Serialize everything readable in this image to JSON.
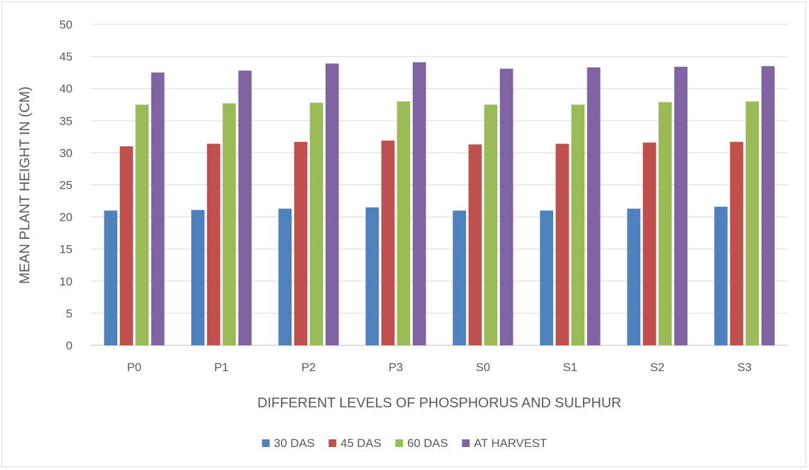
{
  "chart_data": {
    "type": "bar",
    "title": "",
    "xlabel": "DIFFERENT LEVELS OF PHOSPHORUS AND SULPHUR",
    "ylabel": "MEAN PLANT HEIGHT IN (CM)",
    "ylim": [
      0,
      50
    ],
    "yticks": [
      0,
      5,
      10,
      15,
      20,
      25,
      30,
      35,
      40,
      45,
      50
    ],
    "grid": true,
    "legend_position": "bottom",
    "categories": [
      "P0",
      "P1",
      "P2",
      "P3",
      "S0",
      "S1",
      "S2",
      "S3"
    ],
    "series": [
      {
        "name": "30 DAS",
        "color": "#4f81bd",
        "values": [
          21.0,
          21.1,
          21.3,
          21.5,
          21.0,
          21.0,
          21.3,
          21.6
        ]
      },
      {
        "name": "45 DAS",
        "color": "#c0504d",
        "values": [
          31.0,
          31.4,
          31.7,
          31.9,
          31.3,
          31.4,
          31.6,
          31.7
        ]
      },
      {
        "name": "60 DAS",
        "color": "#9bbb59",
        "values": [
          37.5,
          37.7,
          37.8,
          38.0,
          37.5,
          37.5,
          37.9,
          38.0
        ]
      },
      {
        "name": "AT HARVEST",
        "color": "#8064a2",
        "values": [
          42.5,
          42.8,
          43.9,
          44.1,
          43.1,
          43.3,
          43.4,
          43.5
        ]
      }
    ]
  }
}
